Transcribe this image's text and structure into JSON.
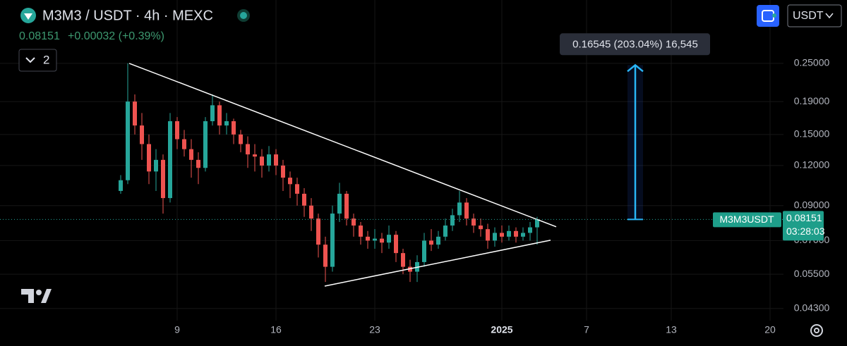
{
  "header": {
    "title": "M3M3 / USDT · 4h · MEXC",
    "last": "0.08151",
    "change": "+0.00032 (+0.39%)",
    "indicators": "2",
    "currency": "USDT"
  },
  "chart_data": {
    "type": "candlestick",
    "log_scale": true,
    "grid": true,
    "up_color": "#26a69a",
    "down_color": "#ef5350",
    "x": [
      4,
      4.5,
      5,
      5.5,
      6,
      6.5,
      7,
      7.5,
      8,
      8.5,
      9,
      9.5,
      10,
      10.5,
      11,
      11.5,
      12,
      12.5,
      13,
      13.5,
      14,
      14.5,
      15,
      15.5,
      16,
      16.5,
      17,
      17.5,
      18,
      18.5,
      19,
      19.5,
      20,
      20.5,
      21,
      21.5,
      22,
      22.5,
      23,
      23.5,
      24,
      24.5,
      25,
      25.5,
      26,
      26.5,
      27,
      27.5,
      28,
      28.5,
      29,
      29.5,
      30,
      30.5,
      31,
      31.5,
      32,
      32.5,
      33,
      33.5
    ],
    "open": [
      0.1,
      0.108,
      0.19,
      0.16,
      0.14,
      0.115,
      0.125,
      0.095,
      0.165,
      0.145,
      0.135,
      0.125,
      0.118,
      0.165,
      0.185,
      0.16,
      0.165,
      0.15,
      0.14,
      0.13,
      0.128,
      0.12,
      0.13,
      0.12,
      0.11,
      0.105,
      0.098,
      0.09,
      0.082,
      0.068,
      0.058,
      0.085,
      0.098,
      0.082,
      0.078,
      0.072,
      0.07,
      0.071,
      0.069,
      0.073,
      0.064,
      0.058,
      0.056,
      0.06,
      0.07,
      0.068,
      0.072,
      0.078,
      0.084,
      0.092,
      0.082,
      0.078,
      0.076,
      0.07,
      0.074,
      0.072,
      0.075,
      0.072,
      0.074,
      0.077
    ],
    "high": [
      0.112,
      0.25,
      0.2,
      0.175,
      0.15,
      0.135,
      0.13,
      0.175,
      0.17,
      0.155,
      0.145,
      0.132,
      0.17,
      0.2,
      0.19,
      0.175,
      0.168,
      0.155,
      0.148,
      0.14,
      0.135,
      0.138,
      0.135,
      0.125,
      0.115,
      0.11,
      0.102,
      0.095,
      0.085,
      0.072,
      0.09,
      0.106,
      0.1,
      0.085,
      0.08,
      0.075,
      0.076,
      0.074,
      0.078,
      0.075,
      0.066,
      0.061,
      0.063,
      0.074,
      0.076,
      0.075,
      0.082,
      0.088,
      0.1,
      0.095,
      0.085,
      0.082,
      0.079,
      0.077,
      0.078,
      0.078,
      0.077,
      0.077,
      0.08,
      0.083
    ],
    "low": [
      0.098,
      0.105,
      0.15,
      0.125,
      0.105,
      0.1,
      0.085,
      0.092,
      0.135,
      0.128,
      0.11,
      0.105,
      0.115,
      0.16,
      0.15,
      0.15,
      0.14,
      0.132,
      0.118,
      0.115,
      0.11,
      0.115,
      0.112,
      0.1,
      0.095,
      0.09,
      0.083,
      0.075,
      0.062,
      0.052,
      0.056,
      0.08,
      0.078,
      0.072,
      0.068,
      0.066,
      0.066,
      0.064,
      0.066,
      0.06,
      0.055,
      0.052,
      0.052,
      0.058,
      0.065,
      0.066,
      0.07,
      0.075,
      0.08,
      0.078,
      0.074,
      0.072,
      0.066,
      0.067,
      0.069,
      0.07,
      0.069,
      0.07,
      0.07,
      0.068
    ],
    "close": [
      0.108,
      0.19,
      0.16,
      0.14,
      0.115,
      0.125,
      0.095,
      0.165,
      0.145,
      0.135,
      0.125,
      0.118,
      0.165,
      0.185,
      0.16,
      0.165,
      0.15,
      0.14,
      0.13,
      0.128,
      0.12,
      0.13,
      0.12,
      0.11,
      0.105,
      0.098,
      0.09,
      0.082,
      0.068,
      0.058,
      0.085,
      0.098,
      0.082,
      0.078,
      0.072,
      0.07,
      0.071,
      0.069,
      0.073,
      0.064,
      0.058,
      0.056,
      0.06,
      0.07,
      0.068,
      0.072,
      0.078,
      0.084,
      0.092,
      0.082,
      0.078,
      0.076,
      0.07,
      0.074,
      0.072,
      0.075,
      0.072,
      0.074,
      0.077,
      0.08151
    ],
    "xlim": [
      -4.55,
      50.95
    ],
    "xticks": [
      {
        "value": 8,
        "label": "9"
      },
      {
        "value": 15,
        "label": "16"
      },
      {
        "value": 22,
        "label": "23"
      },
      {
        "value": 31,
        "label": "2025"
      },
      {
        "value": 37,
        "label": "7"
      },
      {
        "value": 43,
        "label": "13"
      },
      {
        "value": 50,
        "label": "20"
      }
    ],
    "ylim": [
      0.0394,
      0.394
    ],
    "yticks": [
      {
        "value": 0.25,
        "label": "0.25000"
      },
      {
        "value": 0.19,
        "label": "0.19000"
      },
      {
        "value": 0.15,
        "label": "0.15000"
      },
      {
        "value": 0.12,
        "label": "0.12000"
      },
      {
        "value": 0.09,
        "label": "0.09000"
      },
      {
        "value": 0.07,
        "label": "0.07000"
      },
      {
        "value": 0.055,
        "label": "0.05500"
      },
      {
        "value": 0.043,
        "label": "0.04300"
      }
    ],
    "trendlines": [
      {
        "x": [
          4.6,
          34.85
        ],
        "y": [
          0.25,
          0.0773
        ]
      },
      {
        "x": [
          18.45,
          34.45
        ],
        "y": [
          0.0505,
          0.0702
        ]
      }
    ],
    "measure": {
      "x": 40.45,
      "from": 0.08151,
      "to": 0.24696,
      "label": "0.16545 (203.04%) 16,545"
    },
    "last_price": {
      "symbol": "M3M3USDT",
      "value": 0.08151,
      "label": "0.08151",
      "countdown": "03:28:03"
    }
  }
}
